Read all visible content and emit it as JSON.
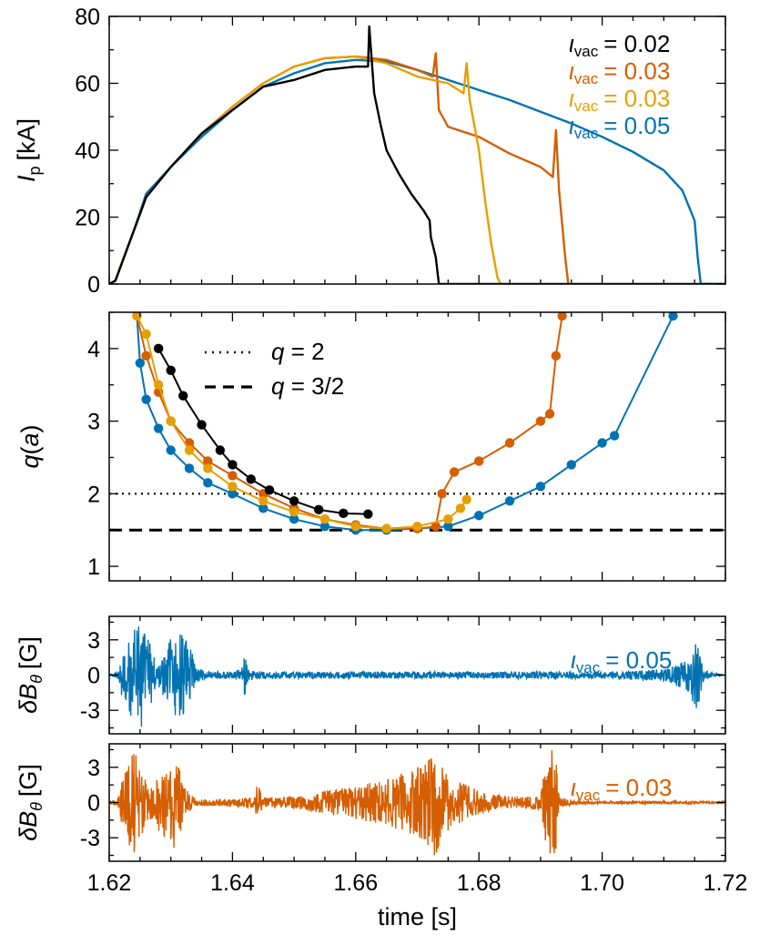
{
  "chart_data": [
    {
      "type": "line",
      "panel": "plasma-current",
      "ylabel": {
        "main": "I",
        "sub": "p",
        "unit": "[kA]"
      },
      "ylim": [
        0,
        80
      ],
      "yticks": [
        0,
        20,
        40,
        60,
        80
      ],
      "xlim": [
        1.62,
        1.72
      ],
      "legend_placement": "top-right",
      "legend": [
        {
          "symbol": "ι",
          "sub": "vac",
          "value": "0.02",
          "color": "#000000"
        },
        {
          "symbol": "ι",
          "sub": "vac",
          "value": "0.03",
          "color": "#d55e00"
        },
        {
          "symbol": "ι",
          "sub": "vac",
          "value": "0.03",
          "color": "#e69f00"
        },
        {
          "symbol": "ι",
          "sub": "vac",
          "value": "0.05",
          "color": "#0072b2"
        }
      ],
      "series": [
        {
          "color": "#0072b2",
          "x": [
            1.62,
            1.621,
            1.622,
            1.624,
            1.626,
            1.63,
            1.635,
            1.64,
            1.645,
            1.65,
            1.655,
            1.66,
            1.665,
            1.67,
            1.675,
            1.68,
            1.685,
            1.69,
            1.695,
            1.7,
            1.705,
            1.71,
            1.713,
            1.715,
            1.7155,
            1.716,
            1.72
          ],
          "y": [
            0,
            1,
            6,
            16,
            27,
            35,
            44,
            52,
            59,
            63,
            66,
            67,
            66.5,
            64,
            61,
            58,
            55,
            51.5,
            48,
            44,
            39.5,
            34,
            28,
            19,
            8,
            0,
            0
          ]
        },
        {
          "color": "#d55e00",
          "x": [
            1.62,
            1.621,
            1.622,
            1.624,
            1.626,
            1.63,
            1.635,
            1.64,
            1.645,
            1.65,
            1.655,
            1.66,
            1.665,
            1.67,
            1.6725,
            1.673,
            1.6735,
            1.675,
            1.68,
            1.685,
            1.69,
            1.692,
            1.6925,
            1.693,
            1.694,
            1.6945
          ],
          "y": [
            0,
            1,
            6,
            16,
            26,
            35,
            45,
            53,
            60,
            65,
            67.5,
            68,
            67,
            64,
            62,
            69,
            52,
            47,
            44,
            39,
            35,
            32,
            46,
            28,
            8,
            0
          ]
        },
        {
          "color": "#e69f00",
          "x": [
            1.62,
            1.621,
            1.622,
            1.624,
            1.626,
            1.63,
            1.635,
            1.64,
            1.645,
            1.65,
            1.655,
            1.66,
            1.665,
            1.67,
            1.675,
            1.6775,
            1.678,
            1.6785,
            1.68,
            1.681,
            1.682,
            1.683,
            1.6835
          ],
          "y": [
            0,
            1,
            6,
            16,
            26,
            35,
            45,
            53,
            60,
            65,
            67.5,
            68,
            66,
            62,
            60,
            57,
            66,
            55,
            40,
            25,
            12,
            2,
            0
          ]
        },
        {
          "color": "#000000",
          "x": [
            1.62,
            1.621,
            1.622,
            1.624,
            1.626,
            1.63,
            1.635,
            1.64,
            1.645,
            1.65,
            1.655,
            1.66,
            1.662,
            1.6622,
            1.663,
            1.664,
            1.665,
            1.667,
            1.669,
            1.671,
            1.672,
            1.6722,
            1.673,
            1.6735,
            1.674,
            1.72
          ],
          "y": [
            0,
            1,
            6,
            16,
            26,
            35,
            45,
            52,
            59,
            61,
            64,
            65,
            65,
            77,
            57,
            48,
            40,
            33,
            27,
            22,
            19,
            14,
            8,
            0,
            0,
            0
          ]
        }
      ]
    },
    {
      "type": "scatter",
      "panel": "edge-safety-factor",
      "ylabel": {
        "main": "q",
        "arg": "a"
      },
      "ylim": [
        0.8,
        4.5
      ],
      "yticks": [
        1,
        2,
        3,
        4
      ],
      "xlim": [
        1.62,
        1.72
      ],
      "reference_lines": [
        {
          "y": 2,
          "style": "dotted"
        },
        {
          "y": 1.5,
          "style": "dashed"
        }
      ],
      "legend": [
        {
          "style": "dotted",
          "symbol": "q",
          "text": " = 2"
        },
        {
          "style": "dashed",
          "symbol": "q",
          "text": " = 3/2"
        }
      ],
      "series": [
        {
          "color": "#0072b2",
          "x": [
            1.6245,
            1.625,
            1.626,
            1.628,
            1.63,
            1.633,
            1.636,
            1.64,
            1.645,
            1.65,
            1.655,
            1.66,
            1.665,
            1.67,
            1.675,
            1.68,
            1.685,
            1.69,
            1.695,
            1.7,
            1.702,
            1.7115
          ],
          "y": [
            4.45,
            3.8,
            3.3,
            2.9,
            2.6,
            2.35,
            2.15,
            2.0,
            1.8,
            1.65,
            1.55,
            1.5,
            1.5,
            1.52,
            1.55,
            1.7,
            1.9,
            2.1,
            2.4,
            2.7,
            2.8,
            4.45
          ]
        },
        {
          "color": "#d55e00",
          "x": [
            1.6245,
            1.626,
            1.628,
            1.63,
            1.633,
            1.636,
            1.64,
            1.645,
            1.65,
            1.655,
            1.66,
            1.665,
            1.67,
            1.673,
            1.674,
            1.676,
            1.68,
            1.685,
            1.69,
            1.6915,
            1.6925,
            1.6935
          ],
          "y": [
            4.45,
            3.9,
            3.4,
            3.0,
            2.7,
            2.45,
            2.25,
            2.0,
            1.8,
            1.65,
            1.57,
            1.52,
            1.52,
            1.55,
            2.0,
            2.3,
            2.45,
            2.7,
            3.0,
            3.1,
            3.9,
            4.45
          ]
        },
        {
          "color": "#e69f00",
          "x": [
            1.6245,
            1.626,
            1.628,
            1.63,
            1.633,
            1.636,
            1.64,
            1.645,
            1.65,
            1.655,
            1.66,
            1.665,
            1.67,
            1.675,
            1.677,
            1.678
          ],
          "y": [
            4.45,
            4.2,
            3.5,
            3.0,
            2.6,
            2.35,
            2.1,
            1.9,
            1.75,
            1.65,
            1.55,
            1.52,
            1.55,
            1.65,
            1.8,
            1.92
          ]
        },
        {
          "color": "#000000",
          "x": [
            1.628,
            1.63,
            1.632,
            1.635,
            1.638,
            1.64,
            1.643,
            1.646,
            1.65,
            1.654,
            1.658,
            1.662
          ],
          "y": [
            4.0,
            3.7,
            3.35,
            2.95,
            2.6,
            2.4,
            2.2,
            2.05,
            1.9,
            1.78,
            1.73,
            1.72
          ]
        }
      ]
    },
    {
      "type": "line",
      "panel": "magnetic-fluctuation-upper",
      "ylabel": {
        "main": "δB",
        "sub": "θ",
        "unit": "[G]"
      },
      "ylim": [
        -5,
        5
      ],
      "yticks": [
        -3,
        0,
        3
      ],
      "ytick_labels": [
        "-3",
        "0",
        "3"
      ],
      "xlim": [
        1.62,
        1.72
      ],
      "legend": [
        {
          "symbol": "ι",
          "sub": "vac",
          "value": "0.05",
          "color": "#0072b2"
        }
      ],
      "series": [
        {
          "color": "#0072b2",
          "envelope": {
            "x": [
              1.62,
              1.6215,
              1.622,
              1.6235,
              1.624,
              1.6255,
              1.626,
              1.6275,
              1.628,
              1.6295,
              1.63,
              1.6315,
              1.632,
              1.6335,
              1.634,
              1.6355,
              1.636,
              1.64,
              1.6415,
              1.642,
              1.6425,
              1.645,
              1.65,
              1.66,
              1.67,
              1.68,
              1.69,
              1.7,
              1.705,
              1.71,
              1.7125,
              1.714,
              1.715,
              1.7155,
              1.716,
              1.7165,
              1.72
            ],
            "amp": [
              0,
              0.4,
              1.8,
              3.5,
              4.0,
              4.5,
              3.5,
              1.5,
              1.0,
              2.5,
              3.3,
              4.0,
              3.5,
              2.0,
              0.8,
              0.4,
              0.3,
              0.3,
              0.5,
              2.0,
              0.5,
              0.3,
              0.3,
              0.3,
              0.3,
              0.3,
              0.3,
              0.3,
              0.4,
              0.5,
              1.0,
              1.5,
              2.8,
              3.2,
              1.5,
              0.4,
              0
            ]
          }
        }
      ]
    },
    {
      "type": "line",
      "panel": "magnetic-fluctuation-lower",
      "ylabel": {
        "main": "δB",
        "sub": "θ",
        "unit": "[G]"
      },
      "ylim": [
        -5,
        5
      ],
      "yticks": [
        -3,
        0,
        3
      ],
      "ytick_labels": [
        "-3",
        "0",
        "3"
      ],
      "xlim": [
        1.62,
        1.72
      ],
      "xticks": [
        1.62,
        1.64,
        1.66,
        1.68,
        1.7,
        1.72
      ],
      "xtick_labels": [
        "1.62",
        "1.64",
        "1.66",
        "1.68",
        "1.70",
        "1.72"
      ],
      "xlabel": "time [s]",
      "legend": [
        {
          "symbol": "ι",
          "sub": "vac",
          "value": "0.03",
          "color": "#d55e00"
        }
      ],
      "series": [
        {
          "color": "#d55e00",
          "envelope": {
            "x": [
              1.62,
              1.6215,
              1.622,
              1.6235,
              1.624,
              1.6255,
              1.626,
              1.6275,
              1.628,
              1.6295,
              1.63,
              1.6315,
              1.632,
              1.6335,
              1.634,
              1.64,
              1.6435,
              1.644,
              1.645,
              1.65,
              1.655,
              1.66,
              1.665,
              1.668,
              1.67,
              1.672,
              1.673,
              1.674,
              1.676,
              1.68,
              1.685,
              1.69,
              1.691,
              1.692,
              1.6925,
              1.693,
              1.695,
              1.7,
              1.72
            ],
            "amp": [
              0,
              0.5,
              2.5,
              4.0,
              4.5,
              3.0,
              1.5,
              1.5,
              2.5,
              3.2,
              4.2,
              3.5,
              1.5,
              0.5,
              0.3,
              0.3,
              0.5,
              1.8,
              0.4,
              0.5,
              1.0,
              1.5,
              2.0,
              2.6,
              3.0,
              3.8,
              4.8,
              3.0,
              2.0,
              1.0,
              0.5,
              0.6,
              4.0,
              4.8,
              4.8,
              0.5,
              0.2,
              0.1,
              0.1
            ]
          }
        }
      ]
    }
  ]
}
